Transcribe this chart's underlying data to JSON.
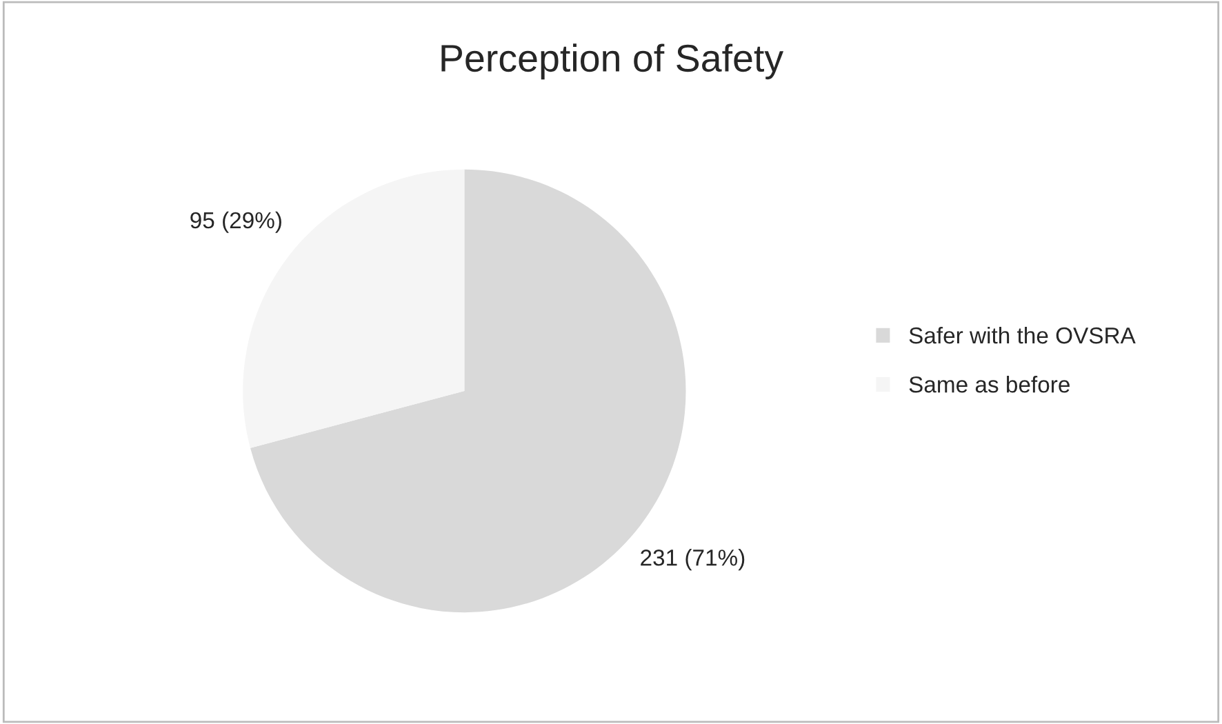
{
  "chart_data": {
    "type": "pie",
    "title": "Perception of Safety",
    "categories": [
      "Safer with the OVSRA",
      "Same as before"
    ],
    "values": [
      231,
      95
    ],
    "colors": [
      "#d9d9d9",
      "#f5f5f5"
    ],
    "value_labels": [
      "231 (71%)",
      "95 (29%)"
    ],
    "legend": "right"
  }
}
